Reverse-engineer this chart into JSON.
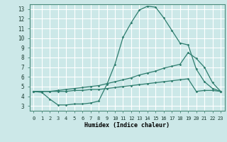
{
  "bg_color": "#cce8e8",
  "grid_color": "#ffffff",
  "line_color": "#2e7d6e",
  "xlabel": "Humidex (Indice chaleur)",
  "xlim": [
    -0.5,
    23.5
  ],
  "ylim": [
    2.5,
    13.5
  ],
  "xticks": [
    0,
    1,
    2,
    3,
    4,
    5,
    6,
    7,
    8,
    9,
    10,
    11,
    12,
    13,
    14,
    15,
    16,
    17,
    18,
    19,
    20,
    21,
    22,
    23
  ],
  "yticks": [
    3,
    4,
    5,
    6,
    7,
    8,
    9,
    10,
    11,
    12,
    13
  ],
  "line1_x": [
    0,
    1,
    2,
    3,
    4,
    5,
    6,
    7,
    8,
    9,
    10,
    11,
    12,
    13,
    14,
    15,
    16,
    17,
    18,
    19,
    20,
    21,
    22,
    23
  ],
  "line1_y": [
    4.5,
    4.4,
    3.7,
    3.1,
    3.1,
    3.2,
    3.2,
    3.3,
    3.5,
    5.2,
    7.3,
    10.1,
    11.6,
    12.9,
    13.3,
    13.2,
    12.1,
    10.8,
    9.5,
    9.3,
    6.8,
    5.5,
    4.8,
    4.5
  ],
  "line2_x": [
    0,
    1,
    2,
    3,
    4,
    5,
    6,
    7,
    8,
    9,
    10,
    11,
    12,
    13,
    14,
    15,
    16,
    17,
    18,
    19,
    20,
    21,
    22,
    23
  ],
  "line2_y": [
    4.5,
    4.5,
    4.5,
    4.6,
    4.7,
    4.8,
    4.9,
    5.0,
    5.1,
    5.3,
    5.5,
    5.7,
    5.9,
    6.2,
    6.4,
    6.6,
    6.9,
    7.1,
    7.3,
    8.5,
    7.9,
    7.0,
    5.4,
    4.5
  ],
  "line3_x": [
    0,
    1,
    2,
    3,
    4,
    5,
    6,
    7,
    8,
    9,
    10,
    11,
    12,
    13,
    14,
    15,
    16,
    17,
    18,
    19,
    20,
    21,
    22,
    23
  ],
  "line3_y": [
    4.5,
    4.5,
    4.5,
    4.5,
    4.5,
    4.6,
    4.6,
    4.7,
    4.7,
    4.8,
    4.9,
    5.0,
    5.1,
    5.2,
    5.3,
    5.4,
    5.5,
    5.6,
    5.7,
    5.8,
    4.5,
    4.6,
    4.6,
    4.5
  ]
}
